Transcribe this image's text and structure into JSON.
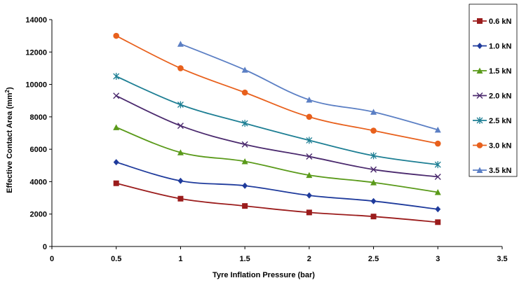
{
  "chart_data": {
    "type": "line",
    "xlabel": "Tyre Inflation Pressure (bar)",
    "ylabel": "Effective Contact Area (mm",
    "ylabel_sup": "2",
    "ylabel_end": ")",
    "xlim": [
      0,
      3.5
    ],
    "ylim": [
      0,
      14000
    ],
    "xticks": [
      "0",
      "0.5",
      "1",
      "1.5",
      "2",
      "2.5",
      "3",
      "3.5"
    ],
    "yticks": [
      "0",
      "2000",
      "4000",
      "6000",
      "8000",
      "10000",
      "12000",
      "14000"
    ],
    "grid": false,
    "legend_position": "right",
    "series": [
      {
        "name": "0.6 kN",
        "color": "#9b1c1c",
        "marker": "square",
        "x": [
          0.5,
          1,
          1.5,
          2,
          2.5,
          3
        ],
        "values": [
          3900,
          2950,
          2500,
          2100,
          1850,
          1500
        ]
      },
      {
        "name": "1.0 kN",
        "color": "#1f3b9c",
        "marker": "diamond",
        "x": [
          0.5,
          1,
          1.5,
          2,
          2.5,
          3
        ],
        "values": [
          5200,
          4050,
          3750,
          3150,
          2800,
          2300
        ]
      },
      {
        "name": "1.5 kN",
        "color": "#5a9a1a",
        "marker": "triangle",
        "x": [
          0.5,
          1,
          1.5,
          2,
          2.5,
          3
        ],
        "values": [
          7350,
          5800,
          5250,
          4400,
          3950,
          3350
        ]
      },
      {
        "name": "2.0 kN",
        "color": "#4b2a6e",
        "marker": "x",
        "x": [
          0.5,
          1,
          1.5,
          2,
          2.5,
          3
        ],
        "values": [
          9300,
          7450,
          6300,
          5550,
          4750,
          4300
        ]
      },
      {
        "name": "2.5 kN",
        "color": "#1e7f94",
        "marker": "star",
        "x": [
          0.5,
          1,
          1.5,
          2,
          2.5,
          3
        ],
        "values": [
          10500,
          8750,
          7600,
          6550,
          5600,
          5050
        ]
      },
      {
        "name": "3.0 kN",
        "color": "#e8601c",
        "marker": "circle",
        "x": [
          0.5,
          1,
          1.5,
          2,
          2.5,
          3
        ],
        "values": [
          13000,
          11000,
          9500,
          8000,
          7150,
          6350
        ]
      },
      {
        "name": "3.5 kN",
        "color": "#5b7fc4",
        "marker": "triangle",
        "x": [
          1,
          1.5,
          2,
          2.5,
          3
        ],
        "values": [
          12500,
          10900,
          9050,
          8300,
          7200
        ]
      }
    ]
  }
}
